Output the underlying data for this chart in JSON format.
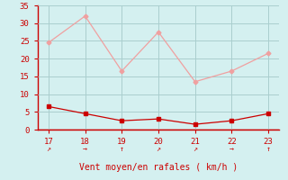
{
  "x": [
    17,
    18,
    19,
    20,
    21,
    22,
    23
  ],
  "rafales": [
    24.5,
    32.0,
    16.5,
    27.5,
    13.5,
    16.5,
    21.5
  ],
  "vent_moyen": [
    6.5,
    4.5,
    2.5,
    3.0,
    1.5,
    2.5,
    4.5
  ],
  "rafales_color": "#f0a0a0",
  "vent_color": "#cc0000",
  "background_color": "#d4f0f0",
  "xlabel": "Vent moyen/en rafales ( km/h )",
  "xlabel_color": "#cc0000",
  "axis_color": "#cc0000",
  "tick_color": "#cc0000",
  "grid_color": "#aacece",
  "ylim": [
    0,
    35
  ],
  "xlim": [
    16.7,
    23.3
  ],
  "yticks": [
    0,
    5,
    10,
    15,
    20,
    25,
    30,
    35
  ],
  "xticks": [
    17,
    18,
    19,
    20,
    21,
    22,
    23
  ],
  "wind_arrows": [
    {
      "x": 17,
      "char": "↗"
    },
    {
      "x": 18,
      "char": "→"
    },
    {
      "x": 19,
      "char": "↑"
    },
    {
      "x": 20,
      "char": "↗"
    },
    {
      "x": 21,
      "char": "↗"
    },
    {
      "x": 22,
      "char": "→"
    },
    {
      "x": 23,
      "char": "↑"
    }
  ]
}
